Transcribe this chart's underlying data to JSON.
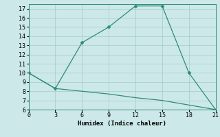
{
  "xlabel": "Humidex (Indice chaleur)",
  "line1_x": [
    0,
    3,
    6,
    9,
    12,
    15,
    18,
    21
  ],
  "line1_y": [
    10,
    8.3,
    13.3,
    15,
    17.3,
    17.3,
    10,
    6
  ],
  "line2_x": [
    0,
    3,
    6,
    9,
    12,
    15,
    18,
    21
  ],
  "line2_y": [
    10,
    8.3,
    8.0,
    7.7,
    7.3,
    7.0,
    6.5,
    6.0
  ],
  "line_color": "#2e8b7a",
  "bg_color": "#cce8e8",
  "grid_color": "#aacfcf",
  "xlim": [
    0,
    21
  ],
  "ylim": [
    6,
    17.5
  ],
  "xticks": [
    0,
    3,
    6,
    9,
    12,
    15,
    18,
    21
  ],
  "yticks": [
    6,
    7,
    8,
    9,
    10,
    11,
    12,
    13,
    14,
    15,
    16,
    17
  ],
  "marker": "D",
  "markersize": 2.5,
  "xlabel_fontsize": 6.5,
  "tick_fontsize": 6.0,
  "linewidth": 0.9
}
